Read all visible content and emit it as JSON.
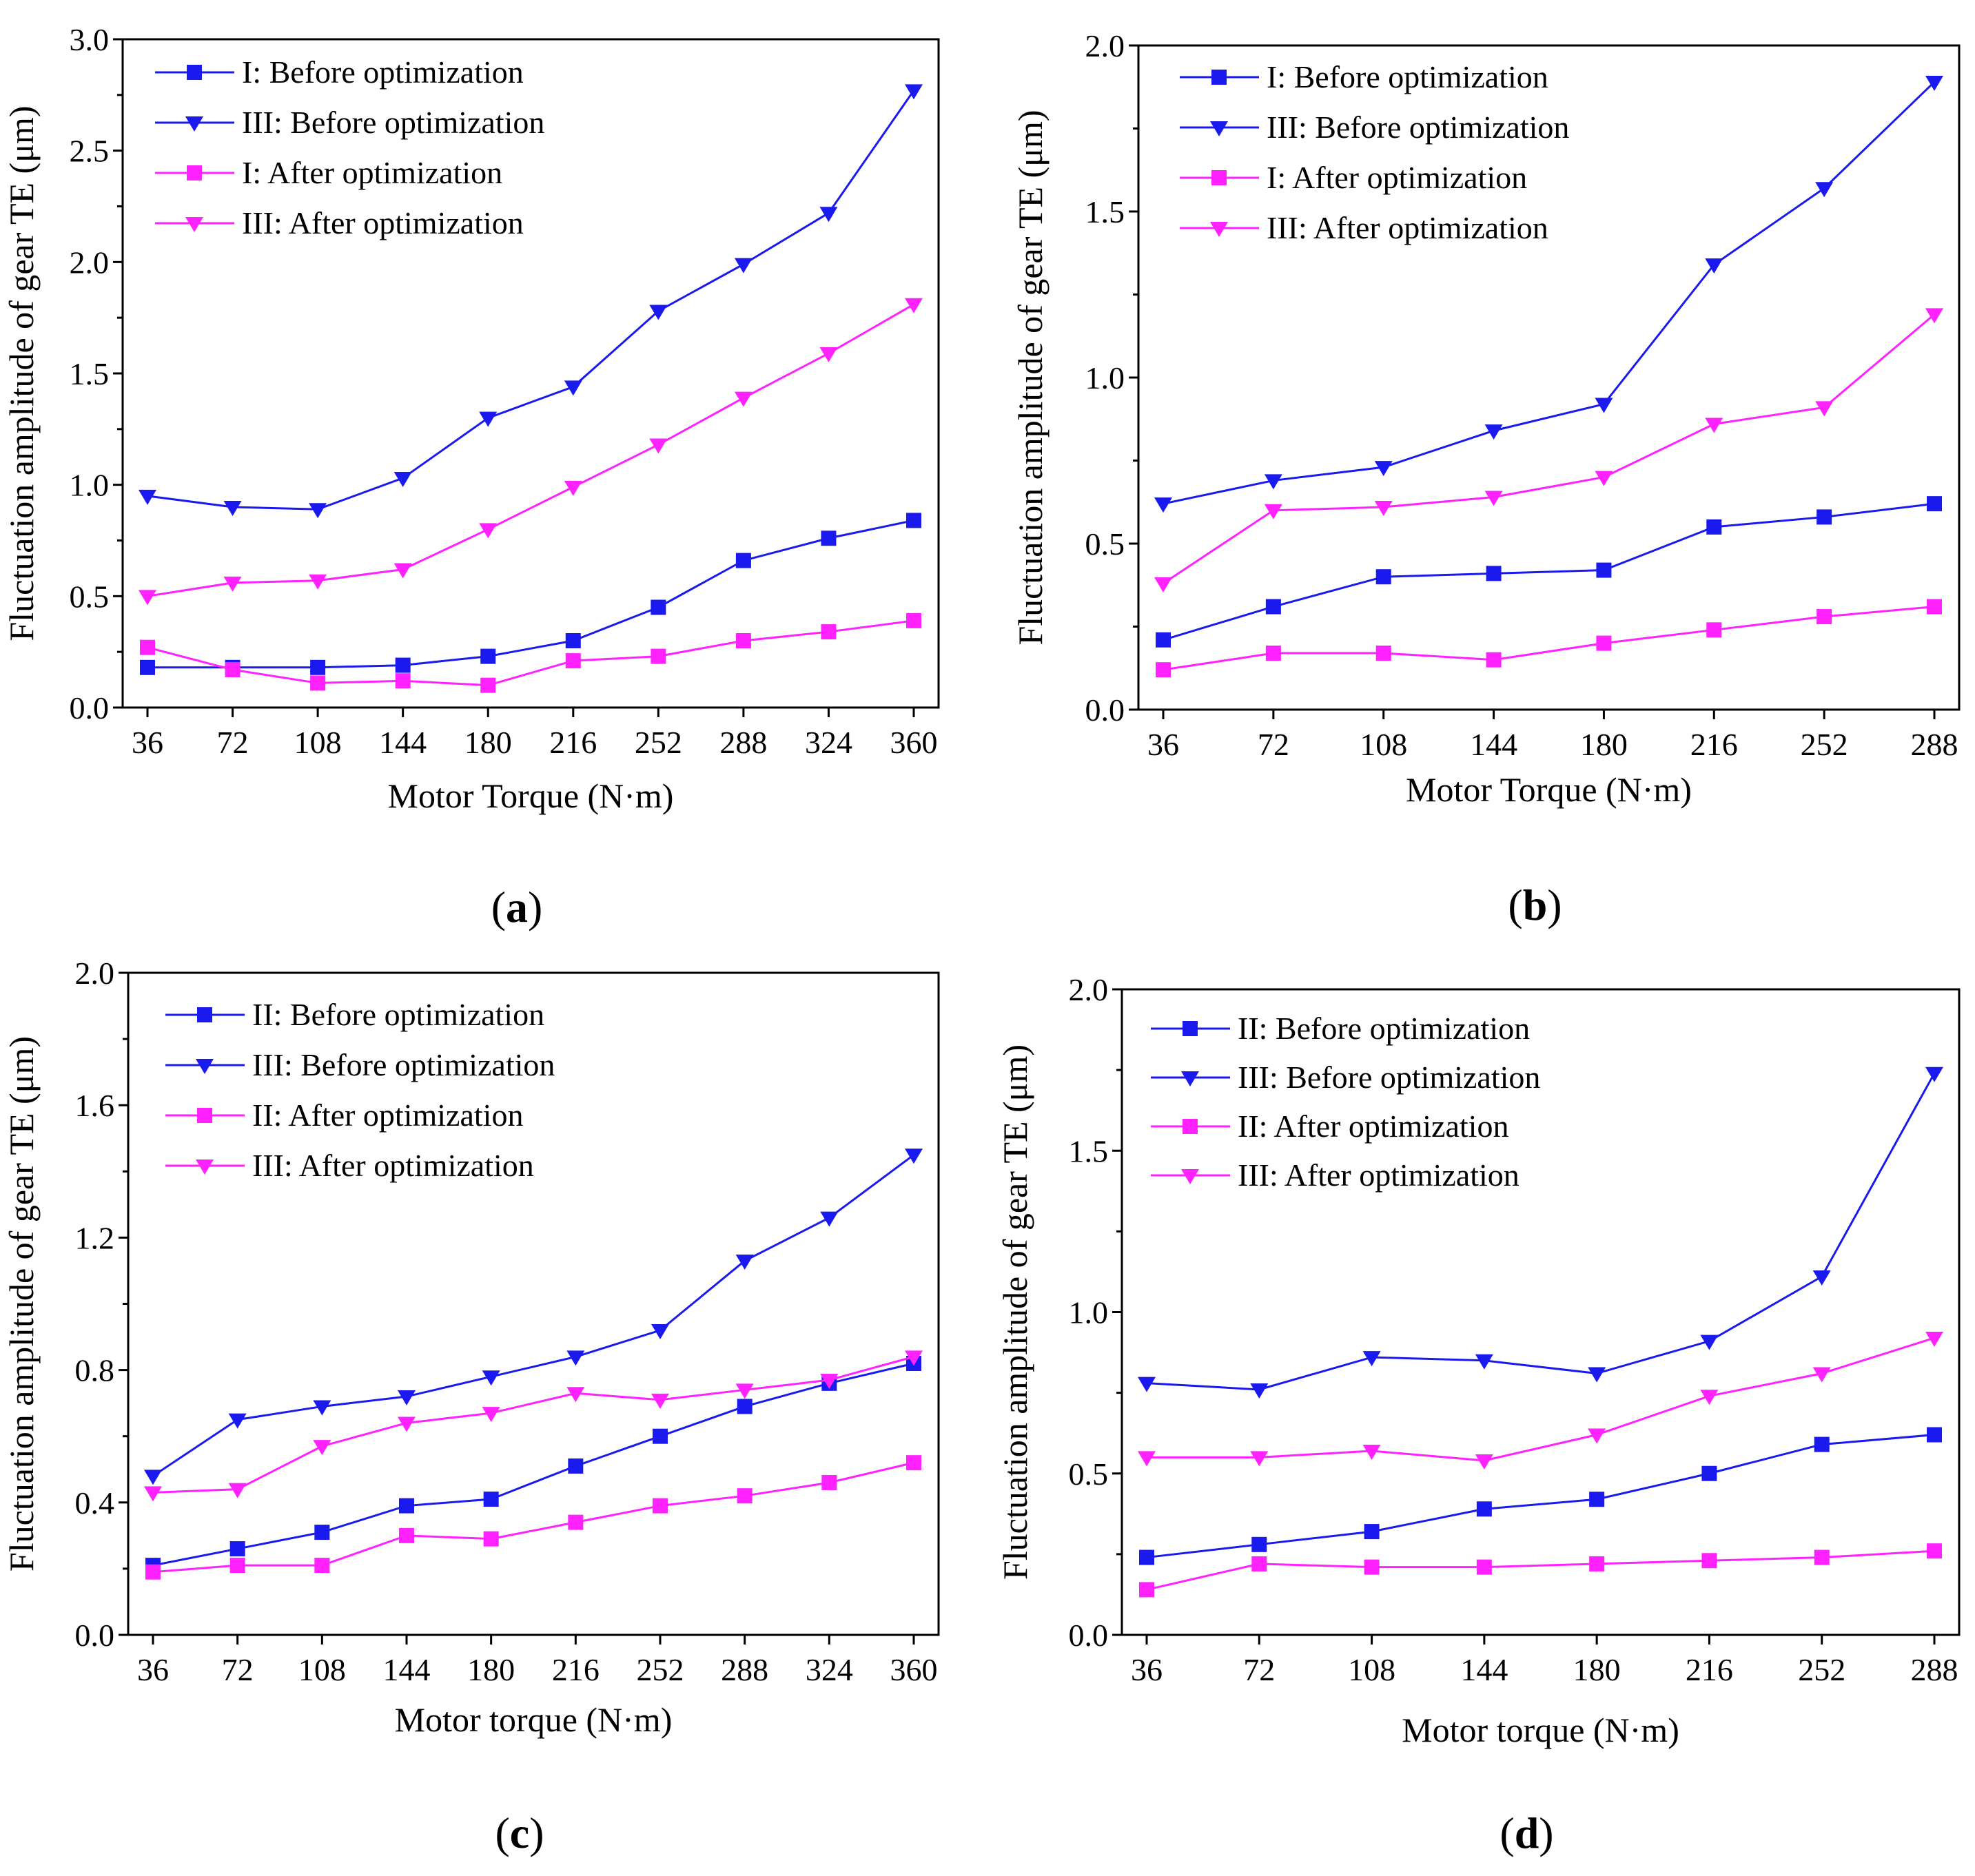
{
  "figure": {
    "panels": [
      {
        "id": "a",
        "label": "(a)"
      },
      {
        "id": "b",
        "label": "(b)"
      },
      {
        "id": "c",
        "label": "(c)"
      },
      {
        "id": "d",
        "label": "(d)"
      }
    ]
  },
  "colors": {
    "blue": "#1a1aee",
    "magenta": "#ff22ff",
    "axis": "#000000"
  },
  "chart_data": [
    {
      "id": "a",
      "type": "line",
      "panel_label": "(a)",
      "xlabel": "Motor Torque (N·m)",
      "ylabel": "Fluctuation amplitude of gear TE (μm)",
      "categories": [
        "36",
        "72",
        "108",
        "144",
        "180",
        "216",
        "252",
        "288",
        "324",
        "360"
      ],
      "ylim": [
        0,
        3.0
      ],
      "yticks": [
        "0.0",
        "0.5",
        "1.0",
        "1.5",
        "2.0",
        "2.5",
        "3.0"
      ],
      "legend_position": "top-left",
      "series": [
        {
          "name": "I: Before optimization",
          "color": "#1a1aee",
          "marker": "square",
          "values": [
            0.18,
            0.18,
            0.18,
            0.19,
            0.23,
            0.3,
            0.45,
            0.66,
            0.76,
            0.84
          ]
        },
        {
          "name": "III: Before optimization",
          "color": "#1a1aee",
          "marker": "triangle-down",
          "values": [
            0.95,
            0.9,
            0.89,
            1.03,
            1.3,
            1.44,
            1.78,
            1.99,
            2.22,
            2.77
          ]
        },
        {
          "name": "I: After optimization",
          "color": "#ff22ff",
          "marker": "square",
          "values": [
            0.27,
            0.17,
            0.11,
            0.12,
            0.1,
            0.21,
            0.23,
            0.3,
            0.34,
            0.39
          ]
        },
        {
          "name": "III: After optimization",
          "color": "#ff22ff",
          "marker": "triangle-down",
          "values": [
            0.5,
            0.56,
            0.57,
            0.62,
            0.8,
            0.99,
            1.18,
            1.39,
            1.59,
            1.81
          ]
        }
      ]
    },
    {
      "id": "b",
      "type": "line",
      "panel_label": "(b)",
      "xlabel": "Motor Torque (N·m)",
      "ylabel": "Fluctuation amplitude of gear TE (μm)",
      "categories": [
        "36",
        "72",
        "108",
        "144",
        "180",
        "216",
        "252",
        "288"
      ],
      "ylim": [
        0,
        2.0
      ],
      "yticks": [
        "0.0",
        "0.5",
        "1.0",
        "1.5",
        "2.0"
      ],
      "legend_position": "top-left",
      "series": [
        {
          "name": "I: Before optimization",
          "color": "#1a1aee",
          "marker": "square",
          "values": [
            0.21,
            0.31,
            0.4,
            0.41,
            0.42,
            0.55,
            0.58,
            0.62
          ]
        },
        {
          "name": "III: Before optimization",
          "color": "#1a1aee",
          "marker": "triangle-down",
          "values": [
            0.62,
            0.69,
            0.73,
            0.84,
            0.92,
            1.34,
            1.57,
            1.89
          ]
        },
        {
          "name": "I: After optimization",
          "color": "#ff22ff",
          "marker": "square",
          "values": [
            0.12,
            0.17,
            0.17,
            0.15,
            0.2,
            0.24,
            0.28,
            0.31
          ]
        },
        {
          "name": "III: After optimization",
          "color": "#ff22ff",
          "marker": "triangle-down",
          "values": [
            0.38,
            0.6,
            0.61,
            0.64,
            0.7,
            0.86,
            0.91,
            1.19
          ]
        }
      ]
    },
    {
      "id": "c",
      "type": "line",
      "panel_label": "(c)",
      "xlabel": "Motor torque (N·m)",
      "ylabel": "Fluctuation amplitude of gear TE (μm)",
      "categories": [
        "36",
        "72",
        "108",
        "144",
        "180",
        "216",
        "252",
        "288",
        "324",
        "360"
      ],
      "ylim": [
        0,
        2.0
      ],
      "yticks": [
        "0.0",
        "0.4",
        "0.8",
        "1.2",
        "1.6",
        "2.0"
      ],
      "legend_position": "top-left",
      "series": [
        {
          "name": "II: Before optimization",
          "color": "#1a1aee",
          "marker": "square",
          "values": [
            0.21,
            0.26,
            0.31,
            0.39,
            0.41,
            0.51,
            0.6,
            0.69,
            0.76,
            0.82
          ]
        },
        {
          "name": "III: Before optimization",
          "color": "#1a1aee",
          "marker": "triangle-down",
          "values": [
            0.48,
            0.65,
            0.69,
            0.72,
            0.78,
            0.84,
            0.92,
            1.13,
            1.26,
            1.45
          ]
        },
        {
          "name": "II: After optimization",
          "color": "#ff22ff",
          "marker": "square",
          "values": [
            0.19,
            0.21,
            0.21,
            0.3,
            0.29,
            0.34,
            0.39,
            0.42,
            0.46,
            0.52
          ]
        },
        {
          "name": "III: After optimization",
          "color": "#ff22ff",
          "marker": "triangle-down",
          "values": [
            0.43,
            0.44,
            0.57,
            0.64,
            0.67,
            0.73,
            0.71,
            0.74,
            0.77,
            0.84
          ]
        }
      ]
    },
    {
      "id": "d",
      "type": "line",
      "panel_label": "(d)",
      "xlabel": "Motor torque (N·m)",
      "ylabel": "Fluctuation amplitude of gear TE (μm)",
      "categories": [
        "36",
        "72",
        "108",
        "144",
        "180",
        "216",
        "252",
        "288"
      ],
      "ylim": [
        0,
        2.0
      ],
      "yticks": [
        "0.0",
        "0.5",
        "1.0",
        "1.5",
        "2.0"
      ],
      "legend_position": "top-left",
      "series": [
        {
          "name": "II: Before optimization",
          "color": "#1a1aee",
          "marker": "square",
          "values": [
            0.24,
            0.28,
            0.32,
            0.39,
            0.42,
            0.5,
            0.59,
            0.62
          ]
        },
        {
          "name": "III: Before optimization",
          "color": "#1a1aee",
          "marker": "triangle-down",
          "values": [
            0.78,
            0.76,
            0.86,
            0.85,
            0.81,
            0.91,
            1.11,
            1.74
          ]
        },
        {
          "name": "II: After optimization",
          "color": "#ff22ff",
          "marker": "square",
          "values": [
            0.14,
            0.22,
            0.21,
            0.21,
            0.22,
            0.23,
            0.24,
            0.26
          ]
        },
        {
          "name": "III: After optimization",
          "color": "#ff22ff",
          "marker": "triangle-down",
          "values": [
            0.55,
            0.55,
            0.57,
            0.54,
            0.62,
            0.74,
            0.81,
            0.92
          ]
        }
      ]
    }
  ]
}
